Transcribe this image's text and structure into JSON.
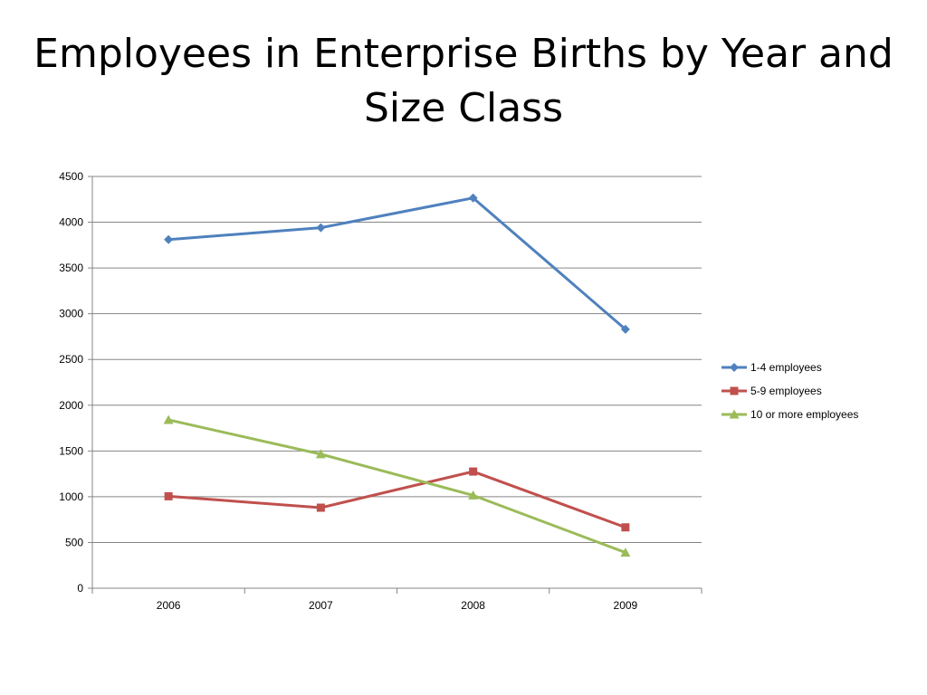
{
  "chart_data": {
    "type": "line",
    "title": "Employees in Enterprise Births by Year and Size Class",
    "categories": [
      "2006",
      "2007",
      "2008",
      "2009"
    ],
    "series": [
      {
        "name": "1-4 employees",
        "values": [
          3810,
          3940,
          4265,
          2830
        ],
        "color": "#4f81bd",
        "marker": "diamond"
      },
      {
        "name": "5-9 employees",
        "values": [
          1005,
          880,
          1275,
          665
        ],
        "color": "#c0504d",
        "marker": "square"
      },
      {
        "name": "10 or more employees",
        "values": [
          1840,
          1465,
          1015,
          390
        ],
        "color": "#9bbb59",
        "marker": "triangle"
      }
    ],
    "ylim": [
      0,
      4500
    ],
    "yticks": [
      0,
      500,
      1000,
      1500,
      2000,
      2500,
      3000,
      3500,
      4000,
      4500
    ],
    "grid": true,
    "legend": "right"
  }
}
